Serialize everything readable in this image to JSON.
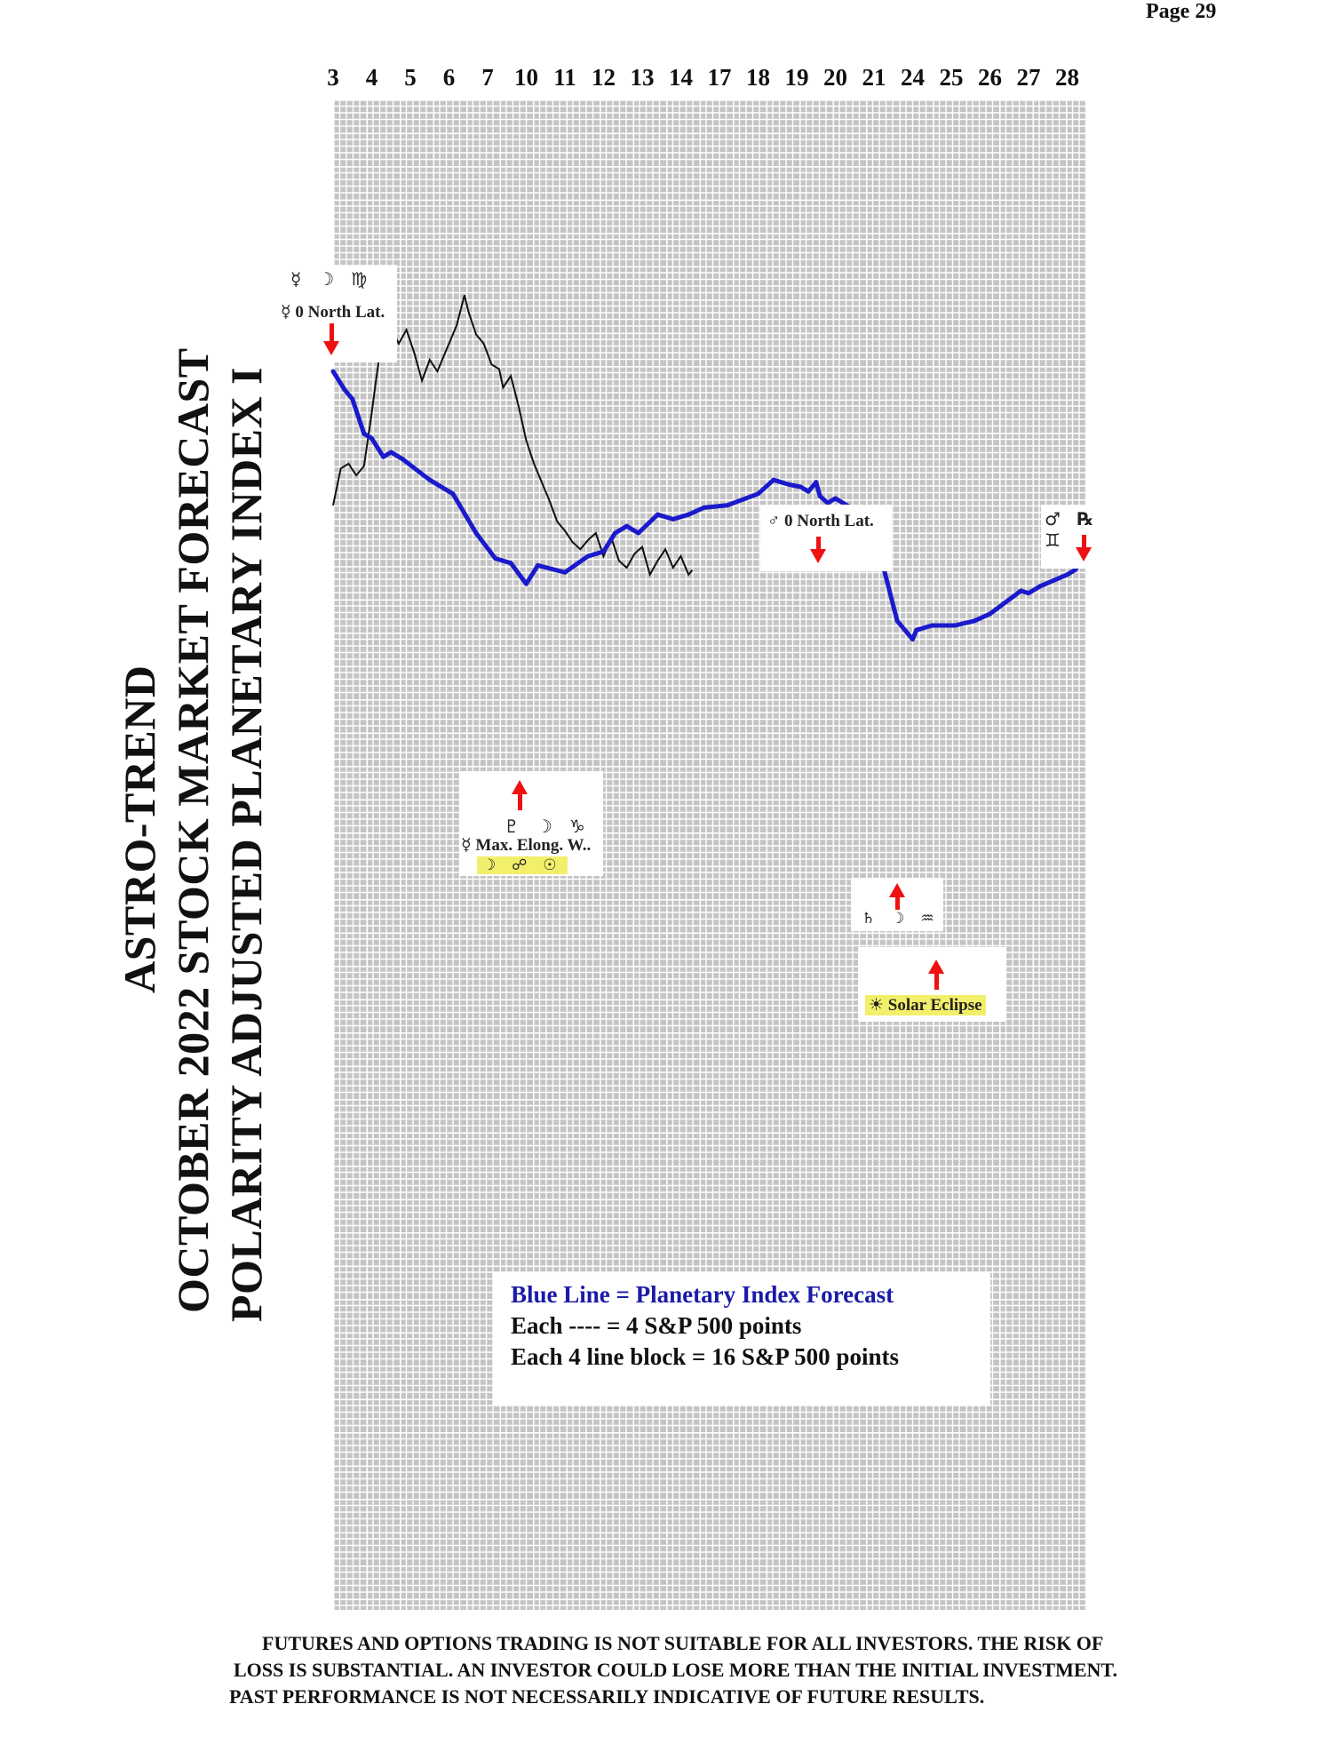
{
  "page_label": "Page  29",
  "titles": {
    "line1": "ASTRO-TREND",
    "line2": "OCTOBER 2022 STOCK MARKET FORECAST",
    "line3": "POLARITY ADJUSTED PLANETARY INDEX I"
  },
  "colors": {
    "forecast_line": "#1a1acc",
    "actual_line": "#111111",
    "grid_fill": "#c4c4c4",
    "grid_line": "#ffffff",
    "arrow": "#ee1111",
    "highlight": "#f2f06a"
  },
  "annotations": {
    "a1": {
      "glyphs": "☿ ☽ ♍",
      "label": "☿ 0 North Lat."
    },
    "a2": {
      "glyphs": "♇ ☽ ♑",
      "label": "☿ Max. Elong. W..",
      "highlight": "☽ ☍ ☉"
    },
    "a3": {
      "label": "♂ 0 North Lat."
    },
    "a4": {
      "glyphs": "♂ ℞ ♊"
    },
    "a5": {
      "glyphs": "♄ ☽ ♒"
    },
    "a6": {
      "label": "☀ Solar Eclipse"
    }
  },
  "legend": {
    "line1": "Blue Line = Planetary Index Forecast",
    "line2": "Each ---- =    4 S&P 500 points",
    "line3": "Each 4 line block =  16  S&P 500 points"
  },
  "disclaimer": [
    "FUTURES AND OPTIONS TRADING IS NOT SUITABLE FOR ALL INVESTORS.  THE RISK OF",
    "LOSS IS SUBSTANTIAL.  AN INVESTOR COULD LOSE MORE THAN THE INITIAL INVESTMENT.",
    "PAST PERFORMANCE IS NOT NECESSARILY INDICATIVE OF FUTURE RESULTS."
  ],
  "chart_data": {
    "type": "line",
    "title": "",
    "xlabel": "",
    "ylabel": "",
    "x_ticks": [
      "3",
      "4",
      "5",
      "6",
      "7",
      "10",
      "11",
      "12",
      "13",
      "14",
      "17",
      "18",
      "19",
      "20",
      "21",
      "24",
      "25",
      "26",
      "27",
      "28"
    ],
    "grid": true,
    "legend_position": "bottom-center",
    "series": [
      {
        "name": "Blue Line = Planetary Index Forecast",
        "points": [
          [
            0,
            100
          ],
          [
            0.3,
            92
          ],
          [
            0.5,
            88
          ],
          [
            0.8,
            73
          ],
          [
            1,
            71
          ],
          [
            1.3,
            63
          ],
          [
            1.5,
            65
          ],
          [
            1.8,
            62
          ],
          [
            2.5,
            53
          ],
          [
            3.1,
            47
          ],
          [
            3.7,
            30
          ],
          [
            4.2,
            19
          ],
          [
            4.6,
            17
          ],
          [
            5,
            8
          ],
          [
            5.3,
            16
          ],
          [
            6,
            13
          ],
          [
            6.6,
            20
          ],
          [
            7,
            22
          ],
          [
            7.3,
            30
          ],
          [
            7.6,
            33
          ],
          [
            7.9,
            30
          ],
          [
            8.4,
            38
          ],
          [
            8.8,
            36
          ],
          [
            9.2,
            38
          ],
          [
            9.6,
            41
          ],
          [
            10.2,
            42
          ],
          [
            11,
            47
          ],
          [
            11.4,
            53
          ],
          [
            11.8,
            51
          ],
          [
            12.1,
            50
          ],
          [
            12.3,
            48
          ],
          [
            12.5,
            52
          ],
          [
            12.6,
            46
          ],
          [
            12.8,
            43
          ],
          [
            13,
            45
          ],
          [
            13.4,
            41
          ],
          [
            14,
            31
          ],
          [
            14.6,
            -8
          ],
          [
            15,
            -16
          ],
          [
            15.1,
            -12
          ],
          [
            15.5,
            -10
          ],
          [
            16.1,
            -10
          ],
          [
            16.6,
            -8
          ],
          [
            17,
            -5
          ],
          [
            17.4,
            0
          ],
          [
            17.8,
            5
          ],
          [
            18,
            4
          ],
          [
            18.3,
            7
          ],
          [
            19,
            12
          ],
          [
            19.2,
            14
          ],
          [
            19.4,
            18
          ],
          [
            19.6,
            28
          ]
        ]
      },
      {
        "name": "",
        "points": [
          [
            0,
            42
          ],
          [
            0.2,
            58
          ],
          [
            0.4,
            60
          ],
          [
            0.6,
            55
          ],
          [
            0.8,
            59
          ],
          [
            1,
            82
          ],
          [
            1.1,
            95
          ],
          [
            1.3,
            118
          ],
          [
            1.5,
            119
          ],
          [
            1.7,
            112
          ],
          [
            1.9,
            118
          ],
          [
            2.1,
            108
          ],
          [
            2.3,
            96
          ],
          [
            2.5,
            105
          ],
          [
            2.7,
            100
          ],
          [
            2.9,
            108
          ],
          [
            3,
            112
          ],
          [
            3.2,
            120
          ],
          [
            3.4,
            133
          ],
          [
            3.5,
            126
          ],
          [
            3.7,
            116
          ],
          [
            3.9,
            112
          ],
          [
            4.1,
            103
          ],
          [
            4.3,
            101
          ],
          [
            4.4,
            93
          ],
          [
            4.6,
            98
          ],
          [
            4.8,
            85
          ],
          [
            5,
            70
          ],
          [
            5.2,
            60
          ],
          [
            5.4,
            52
          ],
          [
            5.6,
            44
          ],
          [
            5.8,
            35
          ],
          [
            6,
            31
          ],
          [
            6.2,
            26
          ],
          [
            6.4,
            23
          ],
          [
            6.6,
            27
          ],
          [
            6.8,
            30
          ],
          [
            7,
            20
          ],
          [
            7.2,
            28
          ],
          [
            7.4,
            18
          ],
          [
            7.6,
            15
          ],
          [
            7.8,
            21
          ],
          [
            8,
            24
          ],
          [
            8.2,
            12
          ],
          [
            8.4,
            18
          ],
          [
            8.6,
            23
          ],
          [
            8.8,
            15
          ],
          [
            9,
            20
          ],
          [
            9.2,
            12
          ],
          [
            9.3,
            14
          ]
        ]
      }
    ]
  }
}
